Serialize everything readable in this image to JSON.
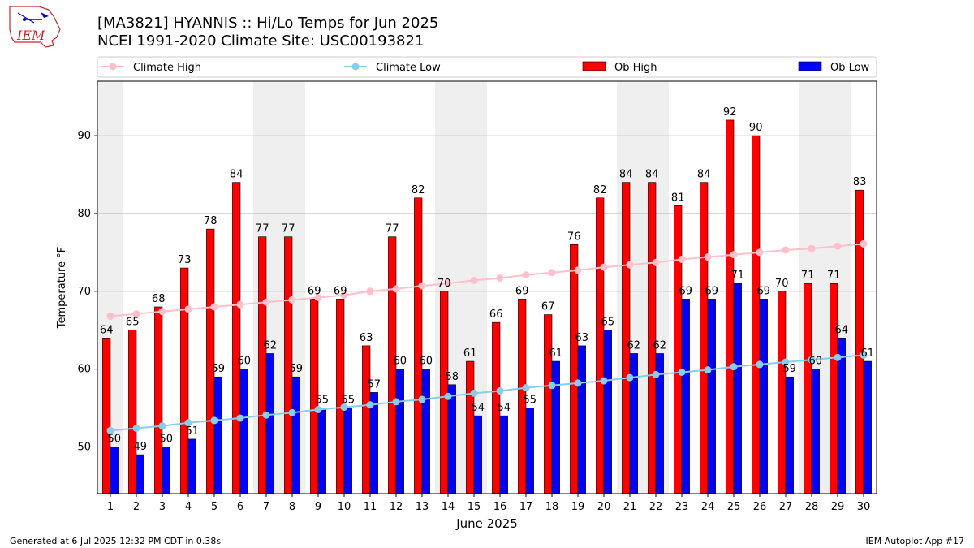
{
  "logo_text": "IEM",
  "title_line1": "[MA3821] HYANNIS :: Hi/Lo Temps for Jun 2025",
  "title_line2": "NCEI 1991-2020 Climate Site: USC00193821",
  "footer_left": "Generated at 6 Jul 2025 12:32 PM CDT in 0.38s",
  "footer_right": "IEM Autoplot App #17",
  "colors": {
    "ob_high": "#ff0000",
    "ob_low": "#0000ff",
    "climate_high": "#ffc0cb",
    "climate_low": "#87ceeb",
    "weekend_band": "#efefef",
    "grid": "#b0b0b0"
  },
  "chart_data": {
    "type": "bar",
    "xlabel": "June 2025",
    "ylabel": "Temperature °F",
    "ylim": [
      44,
      97
    ],
    "yticks": [
      50,
      60,
      70,
      80,
      90
    ],
    "grid": "horizontal",
    "legend_position": "top",
    "categories": [
      "1",
      "2",
      "3",
      "4",
      "5",
      "6",
      "7",
      "8",
      "9",
      "10",
      "11",
      "12",
      "13",
      "14",
      "15",
      "16",
      "17",
      "18",
      "19",
      "20",
      "21",
      "22",
      "23",
      "24",
      "25",
      "26",
      "27",
      "28",
      "29",
      "30"
    ],
    "shaded_days": [
      1,
      7,
      8,
      14,
      15,
      21,
      22,
      28,
      29
    ],
    "series": [
      {
        "name": "Climate High",
        "kind": "line",
        "values": [
          66.8,
          67.1,
          67.4,
          67.7,
          68.0,
          68.3,
          68.6,
          68.9,
          69.2,
          69.5,
          70.0,
          70.3,
          70.7,
          71.0,
          71.4,
          71.7,
          72.1,
          72.4,
          72.7,
          73.1,
          73.4,
          73.7,
          74.1,
          74.4,
          74.7,
          75.0,
          75.3,
          75.5,
          75.8,
          76.1
        ]
      },
      {
        "name": "Climate Low",
        "kind": "line",
        "values": [
          52.1,
          52.4,
          52.7,
          53.1,
          53.4,
          53.7,
          54.1,
          54.4,
          54.8,
          55.1,
          55.4,
          55.8,
          56.1,
          56.5,
          56.9,
          57.2,
          57.6,
          57.9,
          58.2,
          58.5,
          58.9,
          59.3,
          59.6,
          59.9,
          60.3,
          60.6,
          60.9,
          61.2,
          61.5,
          61.8
        ]
      },
      {
        "name": "Ob High",
        "kind": "bar",
        "values": [
          64,
          65,
          68,
          73,
          78,
          84,
          77,
          77,
          69,
          69,
          63,
          77,
          82,
          70,
          61,
          66,
          69,
          67,
          76,
          82,
          84,
          84,
          81,
          84,
          92,
          90,
          70,
          71,
          71,
          83
        ]
      },
      {
        "name": "Ob Low",
        "kind": "bar",
        "values": [
          50,
          49,
          50,
          51,
          59,
          60,
          62,
          59,
          55,
          55,
          57,
          60,
          60,
          58,
          54,
          54,
          55,
          61,
          63,
          65,
          62,
          62,
          69,
          69,
          71,
          69,
          59,
          60,
          64,
          61
        ]
      }
    ]
  }
}
